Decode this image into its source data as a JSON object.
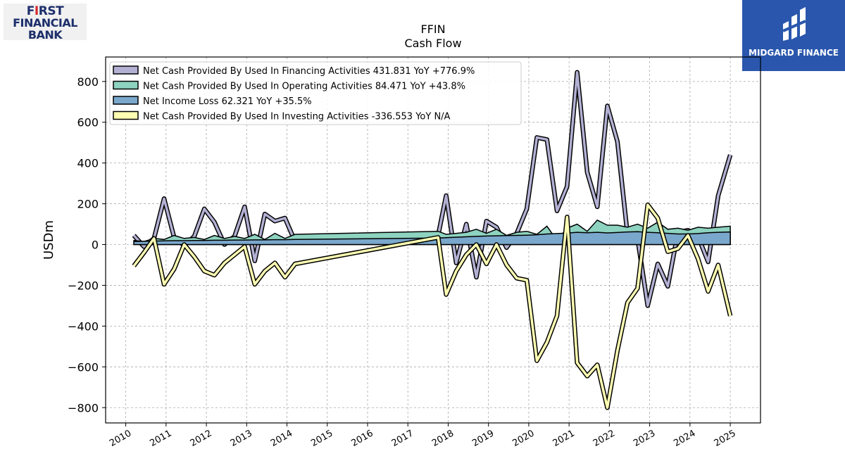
{
  "header": {
    "left_logo": {
      "line1": "FIRST",
      "line2": "FINANCIAL",
      "line3": "BANK",
      "color": "#1d2f6b",
      "accent": "#d42a2a"
    },
    "right_logo": {
      "text": "MIDGARD FINANCE",
      "background": "#2a57ad"
    }
  },
  "chart_data": {
    "type": "line",
    "title": "FFIN",
    "subtitle": "Cash Flow",
    "ylabel": "USDm",
    "xlabel": "",
    "xlim": [
      2009.5,
      2025.75
    ],
    "ylim": [
      -875,
      920
    ],
    "y_ticks": [
      -800,
      -600,
      -400,
      -200,
      0,
      200,
      400,
      600,
      800
    ],
    "y_tick_labels": [
      "−800",
      "−600",
      "−400",
      "−200",
      "0",
      "200",
      "400",
      "600",
      "800"
    ],
    "x_ticks": [
      2010,
      2011,
      2012,
      2013,
      2014,
      2015,
      2016,
      2017,
      2018,
      2019,
      2020,
      2021,
      2022,
      2023,
      2024,
      2025
    ],
    "x_tick_labels": [
      "2010",
      "2011",
      "2012",
      "2013",
      "2014",
      "2015",
      "2016",
      "2017",
      "2018",
      "2019",
      "2020",
      "2021",
      "2022",
      "2023",
      "2024",
      "2025"
    ],
    "grid": true,
    "legend_position": "top-left",
    "series": [
      {
        "name": "Net Cash Provided By Used In Financing Activities",
        "legend_label": "Net Cash Provided By Used In Financing Activities  431.831 YoY +776.9%",
        "color": "#b3b0d4",
        "fill": false,
        "points": [
          [
            2010.2,
            45
          ],
          [
            2010.45,
            -10
          ],
          [
            2010.7,
            30
          ],
          [
            2010.95,
            225
          ],
          [
            2011.2,
            35
          ],
          [
            2011.45,
            -5
          ],
          [
            2011.7,
            40
          ],
          [
            2011.95,
            175
          ],
          [
            2012.2,
            110
          ],
          [
            2012.45,
            0
          ],
          [
            2012.7,
            40
          ],
          [
            2012.95,
            185
          ],
          [
            2013.2,
            -80
          ],
          [
            2013.45,
            150
          ],
          [
            2013.7,
            115
          ],
          [
            2013.95,
            130
          ],
          [
            2014.2,
            15
          ],
          [
            2017.75,
            45
          ],
          [
            2017.95,
            240
          ],
          [
            2018.2,
            -90
          ],
          [
            2018.45,
            100
          ],
          [
            2018.7,
            -160
          ],
          [
            2018.95,
            115
          ],
          [
            2019.2,
            85
          ],
          [
            2019.45,
            -15
          ],
          [
            2019.7,
            55
          ],
          [
            2019.95,
            175
          ],
          [
            2020.2,
            525
          ],
          [
            2020.45,
            515
          ],
          [
            2020.7,
            165
          ],
          [
            2020.95,
            285
          ],
          [
            2021.2,
            845
          ],
          [
            2021.45,
            355
          ],
          [
            2021.7,
            185
          ],
          [
            2021.95,
            680
          ],
          [
            2022.2,
            505
          ],
          [
            2022.45,
            50
          ],
          [
            2022.7,
            30
          ],
          [
            2022.95,
            -300
          ],
          [
            2023.2,
            -95
          ],
          [
            2023.45,
            -205
          ],
          [
            2023.7,
            60
          ],
          [
            2023.95,
            70
          ],
          [
            2024.2,
            40
          ],
          [
            2024.45,
            -85
          ],
          [
            2024.7,
            240
          ],
          [
            2025.0,
            440
          ]
        ]
      },
      {
        "name": "Net Cash Provided By Used In Operating Activities",
        "legend_label": "Net Cash Provided By Used In Operating Activities  84.471 YoY +43.8%",
        "color": "#8dd3c0",
        "fill": true,
        "points": [
          [
            2010.2,
            20
          ],
          [
            2010.45,
            15
          ],
          [
            2010.7,
            30
          ],
          [
            2010.95,
            25
          ],
          [
            2011.2,
            45
          ],
          [
            2011.45,
            30
          ],
          [
            2011.7,
            35
          ],
          [
            2011.95,
            25
          ],
          [
            2012.2,
            45
          ],
          [
            2012.45,
            30
          ],
          [
            2012.7,
            40
          ],
          [
            2012.95,
            30
          ],
          [
            2013.2,
            50
          ],
          [
            2013.45,
            25
          ],
          [
            2013.7,
            55
          ],
          [
            2013.95,
            30
          ],
          [
            2014.2,
            50
          ],
          [
            2017.75,
            65
          ],
          [
            2017.95,
            50
          ],
          [
            2018.2,
            55
          ],
          [
            2018.45,
            60
          ],
          [
            2018.7,
            75
          ],
          [
            2018.95,
            55
          ],
          [
            2019.2,
            75
          ],
          [
            2019.45,
            45
          ],
          [
            2019.7,
            60
          ],
          [
            2019.95,
            65
          ],
          [
            2020.2,
            50
          ],
          [
            2020.45,
            90
          ],
          [
            2020.7,
            20
          ],
          [
            2020.95,
            80
          ],
          [
            2021.2,
            100
          ],
          [
            2021.45,
            65
          ],
          [
            2021.7,
            120
          ],
          [
            2021.95,
            95
          ],
          [
            2022.2,
            95
          ],
          [
            2022.45,
            85
          ],
          [
            2022.7,
            100
          ],
          [
            2022.95,
            80
          ],
          [
            2023.2,
            110
          ],
          [
            2023.45,
            75
          ],
          [
            2023.7,
            80
          ],
          [
            2023.95,
            70
          ],
          [
            2024.2,
            85
          ],
          [
            2024.45,
            80
          ],
          [
            2024.7,
            85
          ],
          [
            2025.0,
            90
          ]
        ]
      },
      {
        "name": "Net Income Loss",
        "legend_label": "Net Income Loss  62.321 YoY +35.5%",
        "color": "#7aa8cc",
        "fill": true,
        "points": [
          [
            2010.2,
            15
          ],
          [
            2010.45,
            16
          ],
          [
            2010.7,
            17
          ],
          [
            2010.95,
            18
          ],
          [
            2011.2,
            19
          ],
          [
            2011.45,
            19
          ],
          [
            2011.7,
            20
          ],
          [
            2011.95,
            20
          ],
          [
            2012.2,
            21
          ],
          [
            2012.45,
            21
          ],
          [
            2012.7,
            22
          ],
          [
            2012.95,
            22
          ],
          [
            2013.2,
            23
          ],
          [
            2013.45,
            23
          ],
          [
            2013.7,
            24
          ],
          [
            2013.95,
            24
          ],
          [
            2014.2,
            25
          ],
          [
            2017.75,
            32
          ],
          [
            2017.95,
            34
          ],
          [
            2018.2,
            36
          ],
          [
            2018.45,
            38
          ],
          [
            2018.7,
            40
          ],
          [
            2018.95,
            42
          ],
          [
            2019.2,
            43
          ],
          [
            2019.45,
            44
          ],
          [
            2019.7,
            45
          ],
          [
            2019.95,
            46
          ],
          [
            2020.2,
            48
          ],
          [
            2020.45,
            52
          ],
          [
            2020.7,
            54
          ],
          [
            2020.95,
            56
          ],
          [
            2021.2,
            60
          ],
          [
            2021.45,
            58
          ],
          [
            2021.7,
            60
          ],
          [
            2021.95,
            57
          ],
          [
            2022.2,
            59
          ],
          [
            2022.45,
            62
          ],
          [
            2022.7,
            63
          ],
          [
            2022.95,
            60
          ],
          [
            2023.2,
            58
          ],
          [
            2023.45,
            55
          ],
          [
            2023.7,
            52
          ],
          [
            2023.95,
            52
          ],
          [
            2024.2,
            54
          ],
          [
            2024.45,
            58
          ],
          [
            2024.7,
            60
          ],
          [
            2025.0,
            62
          ]
        ]
      },
      {
        "name": "Net Cash Provided By Used In Investing Activities",
        "legend_label": "Net Cash Provided By Used In Investing Activities  -336.553 YoY N/A",
        "color": "#ffffb3",
        "fill": false,
        "points": [
          [
            2010.2,
            -105
          ],
          [
            2010.45,
            -40
          ],
          [
            2010.7,
            30
          ],
          [
            2010.95,
            -195
          ],
          [
            2011.2,
            -120
          ],
          [
            2011.45,
            0
          ],
          [
            2011.7,
            -60
          ],
          [
            2011.95,
            -130
          ],
          [
            2012.2,
            -150
          ],
          [
            2012.45,
            -90
          ],
          [
            2012.7,
            -50
          ],
          [
            2012.95,
            -10
          ],
          [
            2013.2,
            -195
          ],
          [
            2013.45,
            -130
          ],
          [
            2013.7,
            -90
          ],
          [
            2013.95,
            -160
          ],
          [
            2014.2,
            -95
          ],
          [
            2017.75,
            35
          ],
          [
            2017.95,
            -245
          ],
          [
            2018.2,
            -130
          ],
          [
            2018.45,
            -50
          ],
          [
            2018.7,
            0
          ],
          [
            2018.95,
            -95
          ],
          [
            2019.2,
            0
          ],
          [
            2019.45,
            -100
          ],
          [
            2019.7,
            -165
          ],
          [
            2019.95,
            -175
          ],
          [
            2020.2,
            -570
          ],
          [
            2020.45,
            -480
          ],
          [
            2020.7,
            -350
          ],
          [
            2020.95,
            135
          ],
          [
            2021.2,
            -580
          ],
          [
            2021.45,
            -645
          ],
          [
            2021.7,
            -590
          ],
          [
            2021.95,
            -800
          ],
          [
            2022.2,
            -520
          ],
          [
            2022.45,
            -285
          ],
          [
            2022.7,
            -215
          ],
          [
            2022.95,
            195
          ],
          [
            2023.2,
            130
          ],
          [
            2023.45,
            -35
          ],
          [
            2023.7,
            -20
          ],
          [
            2023.95,
            45
          ],
          [
            2024.2,
            -70
          ],
          [
            2024.45,
            -230
          ],
          [
            2024.7,
            -100
          ],
          [
            2025.0,
            -350
          ]
        ]
      }
    ]
  }
}
